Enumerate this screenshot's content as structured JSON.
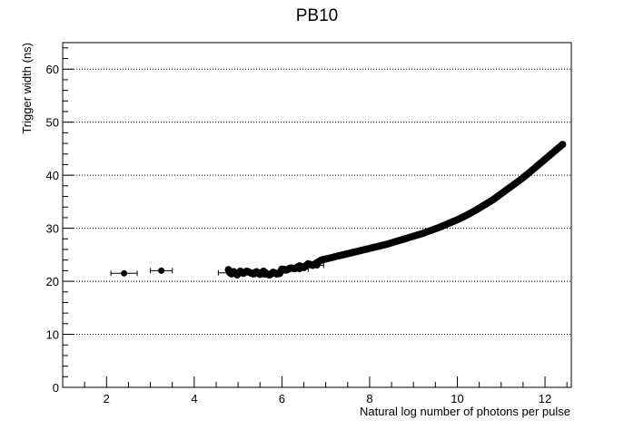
{
  "chart_data": {
    "type": "scatter",
    "title": "PB10",
    "xlabel": "Natural log number of photons per pulse",
    "ylabel": "Trigger width (ns)",
    "xlim": [
      1.0,
      12.6
    ],
    "ylim": [
      0,
      65
    ],
    "x_ticks": [
      2,
      4,
      6,
      8,
      10,
      12
    ],
    "y_ticks": [
      0,
      10,
      20,
      30,
      40,
      50,
      60
    ],
    "grid": "horizontal-dotted",
    "legend": "none",
    "marker_color": "#000000",
    "error_bar_points": [
      {
        "x": 2.4,
        "y": 21.5,
        "xerr": 0.3
      },
      {
        "x": 3.25,
        "y": 22.0,
        "xerr": 0.25
      },
      {
        "x": 4.8,
        "y": 21.6,
        "xerr": 0.25
      },
      {
        "x": 5.6,
        "y": 21.3,
        "xerr": 0.2
      },
      {
        "x": 6.4,
        "y": 22.3,
        "xerr": 0.2
      },
      {
        "x": 6.8,
        "y": 23.0,
        "xerr": 0.15
      }
    ],
    "points_x": [
      4.78,
      4.85,
      4.9,
      4.98,
      5.05,
      5.12,
      5.2,
      5.28,
      5.35,
      5.42,
      5.5,
      5.58,
      5.65,
      5.72,
      5.8,
      5.88,
      5.95,
      6.0,
      6.1,
      6.2,
      6.3,
      6.4,
      6.5,
      6.6,
      6.7,
      6.8,
      6.9,
      7.0,
      7.2,
      7.4,
      7.6,
      7.8,
      8.0,
      8.2,
      8.4,
      8.6,
      8.8,
      9.0,
      9.2,
      9.4,
      9.6,
      9.8,
      10.0,
      10.2,
      10.4,
      10.6,
      10.8,
      11.0,
      11.2,
      11.4,
      11.6,
      11.8,
      12.0,
      12.2,
      12.4
    ],
    "points_y": [
      22.2,
      21.4,
      21.8,
      21.2,
      21.9,
      21.5,
      21.9,
      21.6,
      21.4,
      21.8,
      21.3,
      21.9,
      21.4,
      21.2,
      21.7,
      21.4,
      21.5,
      22.3,
      22.1,
      22.5,
      22.4,
      22.9,
      22.6,
      23.3,
      23.0,
      23.5,
      24.0,
      24.2,
      24.6,
      25.0,
      25.4,
      25.8,
      26.2,
      26.6,
      27.0,
      27.5,
      28.0,
      28.5,
      29.0,
      29.6,
      30.2,
      30.9,
      31.6,
      32.4,
      33.3,
      34.3,
      35.3,
      36.5,
      37.7,
      38.9,
      40.2,
      41.6,
      43.0,
      44.4,
      45.8
    ]
  }
}
